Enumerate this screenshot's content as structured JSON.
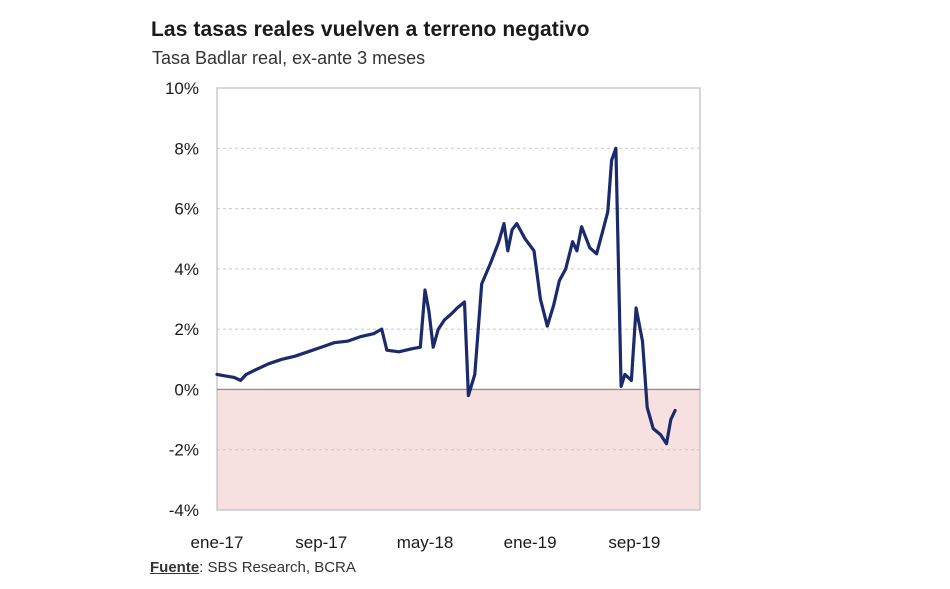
{
  "chart_data": {
    "type": "line",
    "title": "Las tasas reales vuelven a terreno negativo",
    "subtitle": "Tasa Badlar real, ex-ante 3 meses",
    "xlabel": "",
    "ylabel": "",
    "ylim": [
      -4,
      10
    ],
    "xlim": [
      "2017-01",
      "2020-02"
    ],
    "y_ticks": [
      -4,
      -2,
      0,
      2,
      4,
      6,
      8,
      10
    ],
    "y_tick_labels": [
      "-4%",
      "-2%",
      "0%",
      "2%",
      "4%",
      "6%",
      "8%",
      "10%"
    ],
    "x_ticks": [
      "2017-01",
      "2017-09",
      "2018-05",
      "2019-01",
      "2019-09"
    ],
    "x_tick_labels": [
      "ene-17",
      "sep-17",
      "may-18",
      "ene-19",
      "sep-19"
    ],
    "grid": "horizontal dashed",
    "negative_region": {
      "from": 0,
      "to": -4,
      "color": "#f6e0e0"
    },
    "series": [
      {
        "name": "",
        "color": "#1b2a6b",
        "points": [
          [
            "2017-01-01",
            0.5
          ],
          [
            "2017-01-20",
            0.45
          ],
          [
            "2017-02-10",
            0.4
          ],
          [
            "2017-02-25",
            0.3
          ],
          [
            "2017-03-10",
            0.5
          ],
          [
            "2017-04-01",
            0.65
          ],
          [
            "2017-05-01",
            0.85
          ],
          [
            "2017-06-01",
            1.0
          ],
          [
            "2017-07-01",
            1.1
          ],
          [
            "2017-08-01",
            1.25
          ],
          [
            "2017-09-01",
            1.4
          ],
          [
            "2017-10-01",
            1.55
          ],
          [
            "2017-11-01",
            1.6
          ],
          [
            "2017-12-01",
            1.75
          ],
          [
            "2018-01-01",
            1.85
          ],
          [
            "2018-01-20",
            2.0
          ],
          [
            "2018-02-01",
            1.3
          ],
          [
            "2018-03-01",
            1.25
          ],
          [
            "2018-04-01",
            1.35
          ],
          [
            "2018-04-20",
            1.4
          ],
          [
            "2018-05-01",
            3.3
          ],
          [
            "2018-05-10",
            2.6
          ],
          [
            "2018-05-20",
            1.4
          ],
          [
            "2018-06-01",
            2.0
          ],
          [
            "2018-06-15",
            2.3
          ],
          [
            "2018-07-01",
            2.5
          ],
          [
            "2018-07-15",
            2.7
          ],
          [
            "2018-08-01",
            2.9
          ],
          [
            "2018-08-10",
            -0.2
          ],
          [
            "2018-08-25",
            0.5
          ],
          [
            "2018-09-10",
            3.5
          ],
          [
            "2018-10-01",
            4.2
          ],
          [
            "2018-10-20",
            4.9
          ],
          [
            "2018-11-01",
            5.5
          ],
          [
            "2018-11-10",
            4.6
          ],
          [
            "2018-11-20",
            5.3
          ],
          [
            "2018-12-01",
            5.5
          ],
          [
            "2018-12-20",
            5.0
          ],
          [
            "2019-01-10",
            4.6
          ],
          [
            "2019-01-25",
            3.0
          ],
          [
            "2019-02-10",
            2.1
          ],
          [
            "2019-02-25",
            2.8
          ],
          [
            "2019-03-10",
            3.6
          ],
          [
            "2019-03-25",
            4.0
          ],
          [
            "2019-04-10",
            4.9
          ],
          [
            "2019-04-20",
            4.6
          ],
          [
            "2019-05-01",
            5.4
          ],
          [
            "2019-05-20",
            4.7
          ],
          [
            "2019-06-05",
            4.5
          ],
          [
            "2019-06-20",
            5.3
          ],
          [
            "2019-07-01",
            5.9
          ],
          [
            "2019-07-10",
            7.6
          ],
          [
            "2019-07-20",
            8.0
          ],
          [
            "2019-08-01",
            0.1
          ],
          [
            "2019-08-10",
            0.5
          ],
          [
            "2019-08-25",
            0.3
          ],
          [
            "2019-09-05",
            2.7
          ],
          [
            "2019-09-20",
            1.6
          ],
          [
            "2019-10-01",
            -0.6
          ],
          [
            "2019-10-15",
            -1.3
          ],
          [
            "2019-11-01",
            -1.5
          ],
          [
            "2019-11-15",
            -1.8
          ],
          [
            "2019-11-25",
            -1.0
          ],
          [
            "2019-12-05",
            -0.7
          ]
        ]
      }
    ]
  },
  "source": {
    "label": "Fuente",
    "text": ": SBS Research, BCRA"
  }
}
